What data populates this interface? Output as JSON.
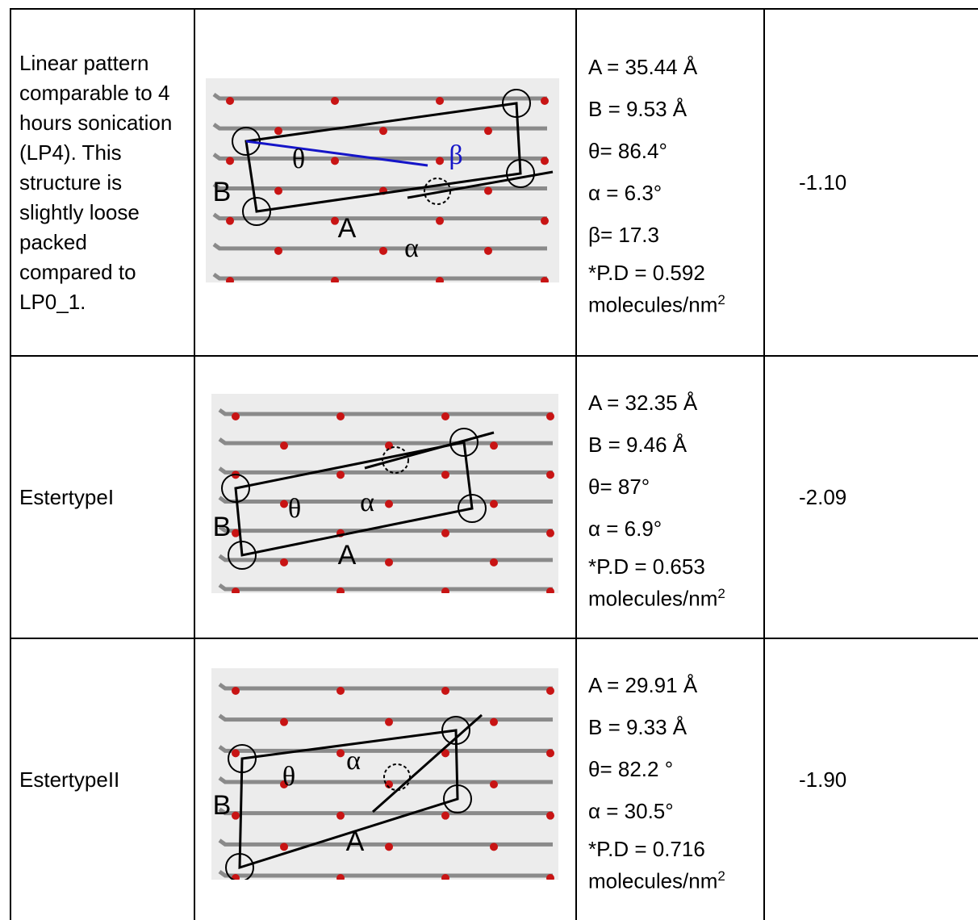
{
  "table": {
    "rows": [
      {
        "description": "Linear pattern comparable to 4 hours sonication (LP4). This structure is slightly loose packed compared to LP0_1.",
        "image_labels": {
          "B": "B",
          "theta": "θ",
          "A": "A",
          "alpha": "α",
          "beta": "β"
        },
        "params": [
          "A = 35.44 Å",
          "B = 9.53 Å",
          "θ= 86.4°",
          "α = 6.3°",
          "β= 17.3"
        ],
        "density": {
          "text": "*P.D = 0.592",
          "unit": "molecules/nm",
          "exponent": "2"
        },
        "energy": "-1.10"
      },
      {
        "description": "EstertypeI",
        "image_labels": {
          "B": "B",
          "theta": "θ",
          "A": "A",
          "alpha": "α"
        },
        "params": [
          "A = 32.35 Å",
          "B = 9.46 Å",
          "θ= 87°",
          "α = 6.9°"
        ],
        "density": {
          "text": "*P.D = 0.653",
          "unit": "molecules/nm",
          "exponent": "2"
        },
        "energy": "-2.09"
      },
      {
        "description": "EstertypeII",
        "image_labels": {
          "B": "B",
          "theta": "θ",
          "A": "A",
          "alpha": "α"
        },
        "params": [
          "A = 29.91 Å",
          "B = 9.33 Å",
          "θ= 82.2 °",
          "α = 30.5°"
        ],
        "density": {
          "text": "*P.D = 0.716",
          "unit": "molecules/nm",
          "exponent": "2"
        },
        "energy": "-1.90"
      }
    ]
  }
}
